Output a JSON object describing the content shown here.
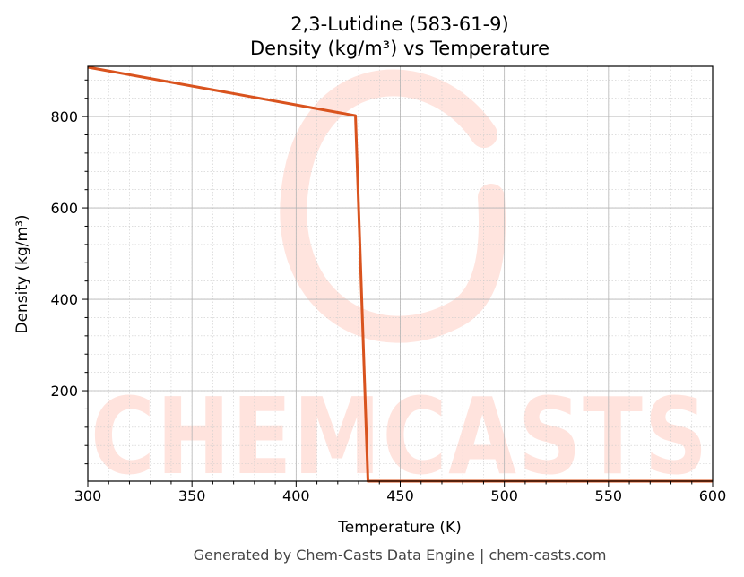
{
  "chart_data": {
    "type": "line",
    "title_line1": "2,3-Lutidine (583-61-9)",
    "title_line2": "Density (kg/m³) vs Temperature",
    "xlabel": "Temperature (K)",
    "ylabel": "Density (kg/m³)",
    "xlim": [
      300,
      600
    ],
    "ylim": [
      2,
      910
    ],
    "x_ticks": [
      300,
      350,
      400,
      450,
      500,
      550,
      600
    ],
    "y_ticks": [
      200,
      400,
      600,
      800
    ],
    "grid": true,
    "series": [
      {
        "color": "#d9531e",
        "x": [
          300,
          428.5,
          434.5,
          600
        ],
        "y": [
          908,
          802,
          2,
          2
        ]
      }
    ]
  },
  "footer": "Generated by Chem-Casts Data Engine | chem-casts.com",
  "watermark": "CHEMCASTS"
}
